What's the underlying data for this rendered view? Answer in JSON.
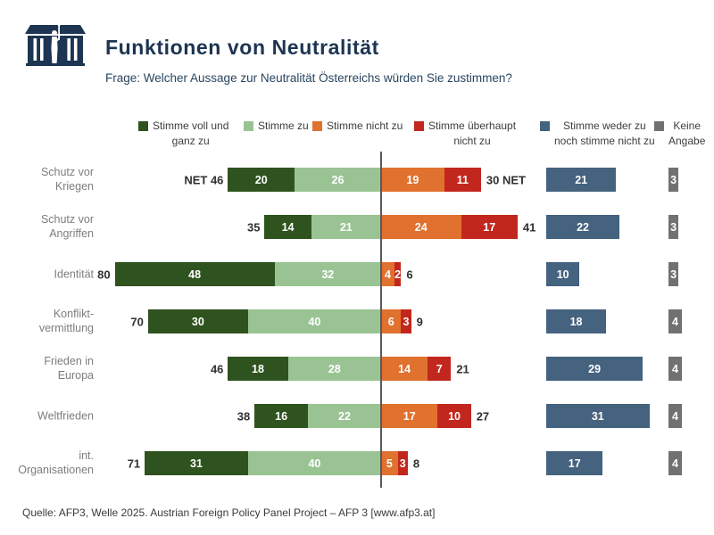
{
  "header": {
    "title": "Funktionen von Neutralität",
    "subtitle": "Frage: Welcher Aussage zur Neutralität Österreichs würden Sie zustimmen?",
    "logo_name": "parliament-building-logo"
  },
  "source_line": "Quelle: AFP3, Welle 2025. Austrian Foreign Policy Panel Project – AFP 3 [www.afp3.at]",
  "colors": {
    "strongly_agree": "#2f531f",
    "agree": "#9ac394",
    "disagree": "#e0712e",
    "strongly_disagree": "#c2271e",
    "neither": "#45627e",
    "no_answer": "#717170",
    "navy": "#1d3452",
    "category_label": "#7d7d7d",
    "divider_line": "#59595b"
  },
  "legend": {
    "items": [
      {
        "key": "strongly_agree",
        "label": "Stimme voll und\nganz zu"
      },
      {
        "key": "agree",
        "label": "Stimme zu"
      },
      {
        "key": "disagree",
        "label": "Stimme nicht zu"
      },
      {
        "key": "strongly_disagree",
        "label": "Stimme überhaupt\nnicht zu"
      },
      {
        "key": "neither",
        "label": "Stimme weder zu\nnoch stimme nicht zu"
      },
      {
        "key": "no_answer",
        "label": "Keine\nAngabe"
      }
    ]
  },
  "chart_data": {
    "type": "bar",
    "variant": "diverging-stacked-horizontal",
    "title": "Funktionen von Neutralität",
    "question": "Frage: Welcher Aussage zur Neutralität Österreichs würden Sie zustimmen?",
    "unit": "percent",
    "series_order": [
      "strongly_agree",
      "agree",
      "disagree",
      "strongly_disagree",
      "neither",
      "no_answer"
    ],
    "categories": [
      "Schutz vor Kriegen",
      "Schutz vor Angriffen",
      "Identität",
      "Konfliktvermittlung",
      "Frieden in Europa",
      "Weltfrieden",
      "int. Organisationen"
    ],
    "rows": [
      {
        "category_lines": "Schutz vor\nKriegen",
        "left_label": "NET 46",
        "right_label": "30 NET",
        "net_agree": 46,
        "net_disagree": 30,
        "strongly_agree": 20,
        "agree": 26,
        "disagree": 19,
        "strongly_disagree": 11,
        "neither": 21,
        "no_answer": 3
      },
      {
        "category_lines": "Schutz vor\nAngriffen",
        "left_label": "35",
        "right_label": "41",
        "net_agree": 35,
        "net_disagree": 41,
        "strongly_agree": 14,
        "agree": 21,
        "disagree": 24,
        "strongly_disagree": 17,
        "neither": 22,
        "no_answer": 3
      },
      {
        "category_lines": "Identität",
        "left_label": "80",
        "right_label": "6",
        "net_agree": 80,
        "net_disagree": 6,
        "strongly_agree": 48,
        "agree": 32,
        "disagree": 4,
        "strongly_disagree": 2,
        "neither": 10,
        "no_answer": 3
      },
      {
        "category_lines": "Konflikt-\nvermittlung",
        "left_label": "70",
        "right_label": "9",
        "net_agree": 70,
        "net_disagree": 9,
        "strongly_agree": 30,
        "agree": 40,
        "disagree": 6,
        "strongly_disagree": 3,
        "neither": 18,
        "no_answer": 4
      },
      {
        "category_lines": "Frieden in\nEuropa",
        "left_label": "46",
        "right_label": "21",
        "net_agree": 46,
        "net_disagree": 21,
        "strongly_agree": 18,
        "agree": 28,
        "disagree": 14,
        "strongly_disagree": 7,
        "neither": 29,
        "no_answer": 4
      },
      {
        "category_lines": "Weltfrieden",
        "left_label": "38",
        "right_label": "27",
        "net_agree": 38,
        "net_disagree": 27,
        "strongly_agree": 16,
        "agree": 22,
        "disagree": 17,
        "strongly_disagree": 10,
        "neither": 31,
        "no_answer": 4
      },
      {
        "category_lines": "int.\nOrganisationen",
        "left_label": "71",
        "right_label": "8",
        "net_agree": 71,
        "net_disagree": 8,
        "strongly_agree": 31,
        "agree": 40,
        "disagree": 5,
        "strongly_disagree": 3,
        "neither": 17,
        "no_answer": 4
      }
    ]
  }
}
